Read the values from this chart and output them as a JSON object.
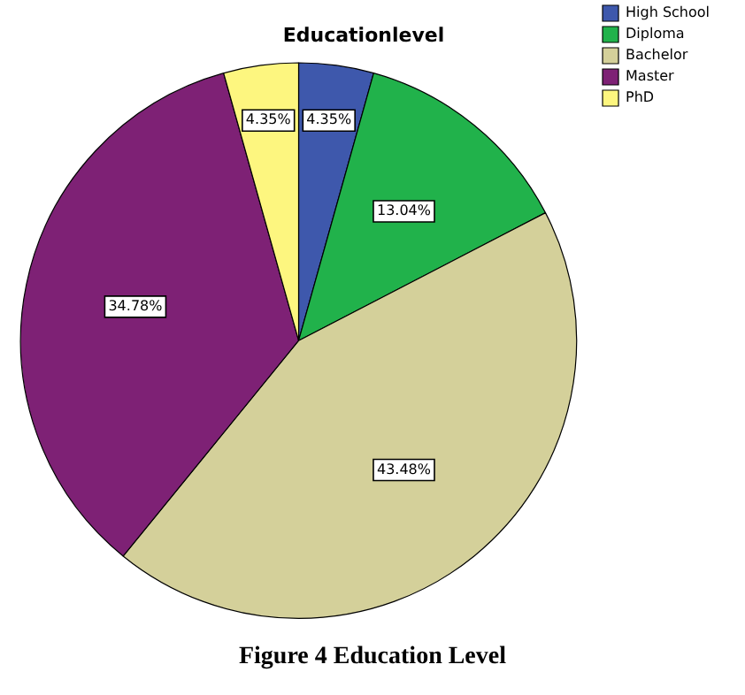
{
  "chart_data": {
    "type": "pie",
    "title": "Educationlevel",
    "categories": [
      "High School",
      "Diploma",
      "Bachelor",
      "Master",
      "PhD"
    ],
    "values": [
      4.35,
      13.04,
      43.48,
      34.78,
      4.35
    ],
    "value_labels": [
      "4.35%",
      "13.04%",
      "43.48%",
      "34.78%",
      "4.35%"
    ],
    "colors": [
      "#3e58ac",
      "#21b24b",
      "#d4d09a",
      "#7e2175",
      "#fdf67f"
    ],
    "legend": "top right",
    "annotations": [
      "Figure 4 Education Level"
    ]
  }
}
